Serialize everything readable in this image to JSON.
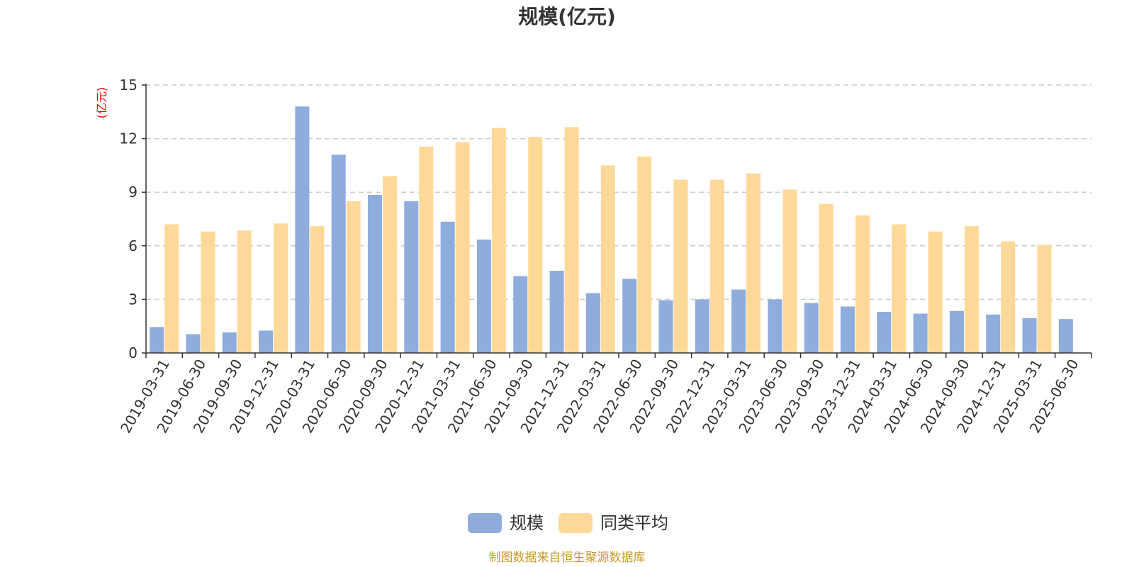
{
  "chart_data": {
    "type": "bar",
    "title": "规模(亿元)",
    "ylabel": "(亿元)",
    "ylim": [
      0,
      15
    ],
    "yticks": [
      "0",
      "3",
      "6",
      "9",
      "12",
      "15"
    ],
    "grid": true,
    "legend_position": "bottom-center",
    "categories": [
      "2019-03-31",
      "2019-06-30",
      "2019-09-30",
      "2019-12-31",
      "2020-03-31",
      "2020-06-30",
      "2020-09-30",
      "2020-12-31",
      "2021-03-31",
      "2021-06-30",
      "2021-09-30",
      "2021-12-31",
      "2022-03-31",
      "2022-06-30",
      "2022-09-30",
      "2022-12-31",
      "2023-03-31",
      "2023-06-30",
      "2023-09-30",
      "2023-12-31",
      "2024-03-31",
      "2024-06-30",
      "2024-09-30",
      "2024-12-31",
      "2025-03-31",
      "2025-06-30"
    ],
    "series": [
      {
        "name": "规模",
        "color": "#8eacdc",
        "values": [
          1.45,
          1.05,
          1.15,
          1.25,
          13.8,
          11.1,
          8.85,
          8.5,
          7.35,
          6.35,
          4.3,
          4.6,
          3.35,
          4.15,
          2.95,
          3.0,
          3.55,
          3.0,
          2.8,
          2.6,
          2.3,
          2.2,
          2.35,
          2.15,
          1.95,
          1.9
        ]
      },
      {
        "name": "同类平均",
        "color": "#ffd998",
        "values": [
          7.2,
          6.8,
          6.85,
          7.25,
          7.1,
          8.5,
          9.9,
          11.55,
          11.8,
          12.6,
          12.1,
          12.65,
          10.5,
          11.0,
          9.7,
          9.7,
          10.05,
          9.15,
          8.35,
          7.7,
          7.2,
          6.8,
          7.1,
          6.25,
          6.05,
          null
        ]
      }
    ],
    "title_color": "#333333",
    "unit_color": "#ff0000",
    "source_color": "#c8992a"
  },
  "source_note": "制图数据来自恒生聚源数据库"
}
